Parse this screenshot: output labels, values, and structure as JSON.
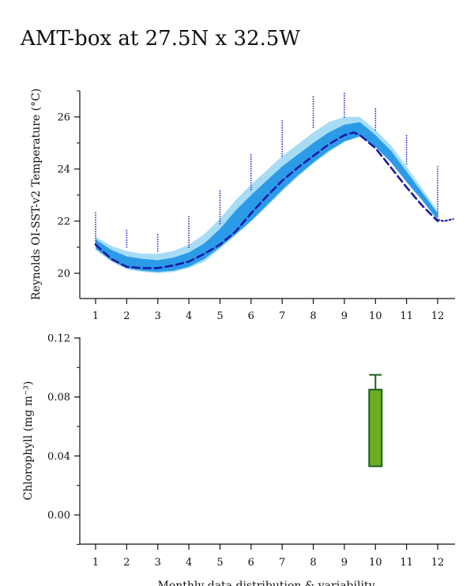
{
  "page": {
    "title": "AMT-box at 27.5N x 32.5W"
  },
  "chart_data": [
    {
      "type": "line",
      "ylabel": "Reynolds OI-SST-v2 Temperature (°C)",
      "xlabel": "",
      "x_ticks": [
        "1",
        "2",
        "3",
        "4",
        "5",
        "6",
        "7",
        "8",
        "9",
        "10",
        "11",
        "12"
      ],
      "y_ticks": [
        "20",
        "22",
        "24",
        "26"
      ],
      "xlim": [
        0.85,
        12.5
      ],
      "ylim": [
        19.0,
        27.0
      ],
      "grid": false,
      "series": [
        {
          "role": "outer-band",
          "color": "#a8dcf5",
          "x": [
            1,
            1.5,
            2,
            2.5,
            3,
            3.5,
            4,
            4.5,
            5,
            5.5,
            6,
            6.5,
            7,
            7.5,
            8,
            8.5,
            9,
            9.5,
            10,
            10.5,
            11,
            11.5,
            12
          ],
          "upper": [
            21.4,
            21.05,
            20.85,
            20.75,
            20.75,
            20.85,
            21.1,
            21.5,
            22.1,
            22.8,
            23.4,
            23.95,
            24.5,
            24.95,
            25.4,
            25.8,
            26.0,
            26.0,
            25.5,
            24.9,
            24.1,
            23.25,
            22.4
          ],
          "lower": [
            20.9,
            20.45,
            20.15,
            20.05,
            20.0,
            20.05,
            20.2,
            20.45,
            20.95,
            21.45,
            22.0,
            22.55,
            23.15,
            23.7,
            24.2,
            24.65,
            25.05,
            25.3,
            24.9,
            24.25,
            23.5,
            22.8,
            22.0
          ]
        },
        {
          "role": "inner-band",
          "color": "#2b9be8",
          "x": [
            1,
            1.5,
            2,
            2.5,
            3,
            3.5,
            4,
            4.5,
            5,
            5.5,
            6,
            6.5,
            7,
            7.5,
            8,
            8.5,
            9,
            9.5,
            10,
            10.5,
            11,
            11.5,
            12
          ],
          "upper": [
            21.3,
            20.9,
            20.65,
            20.55,
            20.5,
            20.6,
            20.8,
            21.15,
            21.7,
            22.4,
            23.0,
            23.55,
            24.1,
            24.55,
            25.0,
            25.4,
            25.7,
            25.8,
            25.3,
            24.7,
            23.9,
            23.1,
            22.3
          ],
          "lower": [
            20.95,
            20.5,
            20.2,
            20.1,
            20.05,
            20.1,
            20.25,
            20.55,
            21.0,
            21.5,
            22.0,
            22.6,
            23.2,
            23.75,
            24.25,
            24.7,
            25.05,
            25.25,
            24.85,
            24.25,
            23.5,
            22.8,
            22.05
          ]
        },
        {
          "role": "climatology-mean",
          "style": "dashed",
          "color": "#1a1aa6",
          "x": [
            1,
            1.5,
            2,
            2.5,
            3,
            3.5,
            4,
            4.5,
            5,
            5.5,
            6,
            6.5,
            7,
            7.5,
            8,
            8.5,
            9,
            9.3,
            9.5,
            10,
            10.5,
            11,
            11.5,
            12
          ],
          "y": [
            21.1,
            20.55,
            20.25,
            20.2,
            20.2,
            20.3,
            20.45,
            20.75,
            21.1,
            21.6,
            22.3,
            22.95,
            23.55,
            24.05,
            24.5,
            24.95,
            25.3,
            25.4,
            25.3,
            24.8,
            24.05,
            23.3,
            22.6,
            22.0
          ]
        },
        {
          "role": "tail",
          "style": "dotted",
          "color": "#1a1aa6",
          "x": [
            12,
            12.2,
            12.4,
            12.5
          ],
          "y": [
            22.05,
            22.0,
            22.05,
            22.08
          ]
        }
      ],
      "monthly_points": [
        {
          "month": 1,
          "min": 21.15,
          "max": 22.4
        },
        {
          "month": 2,
          "min": 21.0,
          "max": 21.7
        },
        {
          "month": 3,
          "min": 20.85,
          "max": 21.55
        },
        {
          "month": 4,
          "min": 21.0,
          "max": 22.2
        },
        {
          "month": 5,
          "min": 21.9,
          "max": 23.2
        },
        {
          "month": 6,
          "min": 23.2,
          "max": 24.6
        },
        {
          "month": 7,
          "min": 24.5,
          "max": 25.85
        },
        {
          "month": 8,
          "min": 25.6,
          "max": 26.85
        },
        {
          "month": 9,
          "min": 26.0,
          "max": 26.95
        },
        {
          "month": 10,
          "min": 25.5,
          "max": 26.35
        },
        {
          "month": 11,
          "min": 24.2,
          "max": 25.3
        },
        {
          "month": 12,
          "min": 22.2,
          "max": 24.1
        }
      ]
    },
    {
      "type": "bar",
      "ylabel": "Chlorophyll (mg m⁻³)",
      "xlabel": "Monthly data distribution & variability",
      "x_ticks": [
        "1",
        "2",
        "3",
        "4",
        "5",
        "6",
        "7",
        "8",
        "9",
        "10",
        "11",
        "12"
      ],
      "y_ticks": [
        "0.00",
        "0.04",
        "0.08",
        "0.12"
      ],
      "xlim": [
        0.45,
        12.5
      ],
      "ylim": [
        -0.02,
        0.12
      ],
      "grid": false,
      "bars": [
        {
          "month": 10,
          "low": 0.033,
          "high": 0.085,
          "whisker_high": 0.095,
          "fill": "#6aad1e",
          "edge": "#1a5e20"
        }
      ]
    }
  ]
}
